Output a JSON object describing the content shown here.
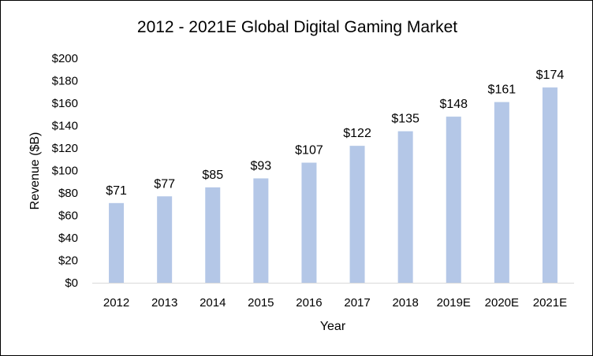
{
  "chart_data": {
    "type": "bar",
    "title": "2012 - 2021E Global Digital Gaming Market",
    "xlabel": "Year",
    "ylabel": "Revenue ($B)",
    "categories": [
      "2012",
      "2013",
      "2014",
      "2015",
      "2016",
      "2017",
      "2018",
      "2019E",
      "2020E",
      "2021E"
    ],
    "values": [
      71,
      77,
      85,
      93,
      107,
      122,
      135,
      148,
      161,
      174
    ],
    "data_labels": [
      "$71",
      "$77",
      "$85",
      "$93",
      "$107",
      "$122",
      "$135",
      "$148",
      "$161",
      "$174"
    ],
    "ylim": [
      0,
      200
    ],
    "yticks": [
      0,
      20,
      40,
      60,
      80,
      100,
      120,
      140,
      160,
      180,
      200
    ],
    "ytick_labels": [
      "$0",
      "$20",
      "$40",
      "$60",
      "$80",
      "$100",
      "$120",
      "$140",
      "$160",
      "$180",
      "$200"
    ],
    "grid": false,
    "legend": "none",
    "colors": {
      "bar": "#b4c7e7",
      "axis": "#d9d9d9",
      "text": "#000000"
    }
  }
}
